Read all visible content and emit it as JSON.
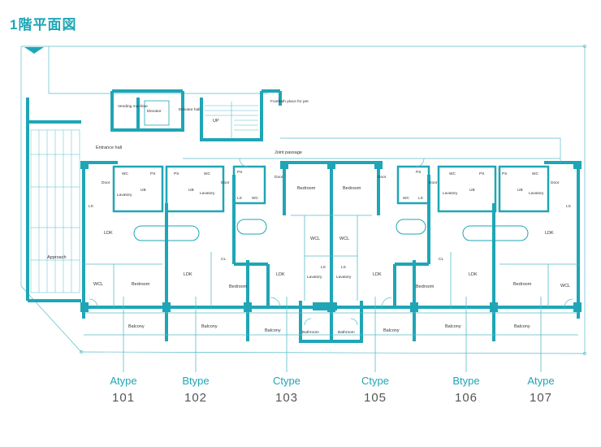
{
  "title": "1階平面図",
  "colors": {
    "accent": "#1ea6b6",
    "wall": "#1ea6b6",
    "thin": "#57bcc8"
  },
  "common_labels": {
    "vending": "Vending machine",
    "elevator": "Elevator",
    "elevator_hall": "Elevator hall",
    "up": "UP",
    "footbath": "Footbath place for pet",
    "entrance_hall": "Entrance hall",
    "joint_passage": "Joint passage",
    "approach": "Approach"
  },
  "room_labels": {
    "door": "Door",
    "wc": "WC",
    "ps": "PS",
    "ub": "UB",
    "lavatory": "Lavatory",
    "ls": "LS",
    "ldk": "LDK",
    "wcl": "WCL",
    "bedroom": "Bedroom",
    "cl": "CL",
    "balcony": "Balcony",
    "bathroom": "Bathroom"
  },
  "units": [
    {
      "type": "Atype",
      "number": "101"
    },
    {
      "type": "Btype",
      "number": "102"
    },
    {
      "type": "Ctype",
      "number": "103"
    },
    {
      "type": "Ctype",
      "number": "105"
    },
    {
      "type": "Btype",
      "number": "106"
    },
    {
      "type": "Atype",
      "number": "107"
    }
  ]
}
